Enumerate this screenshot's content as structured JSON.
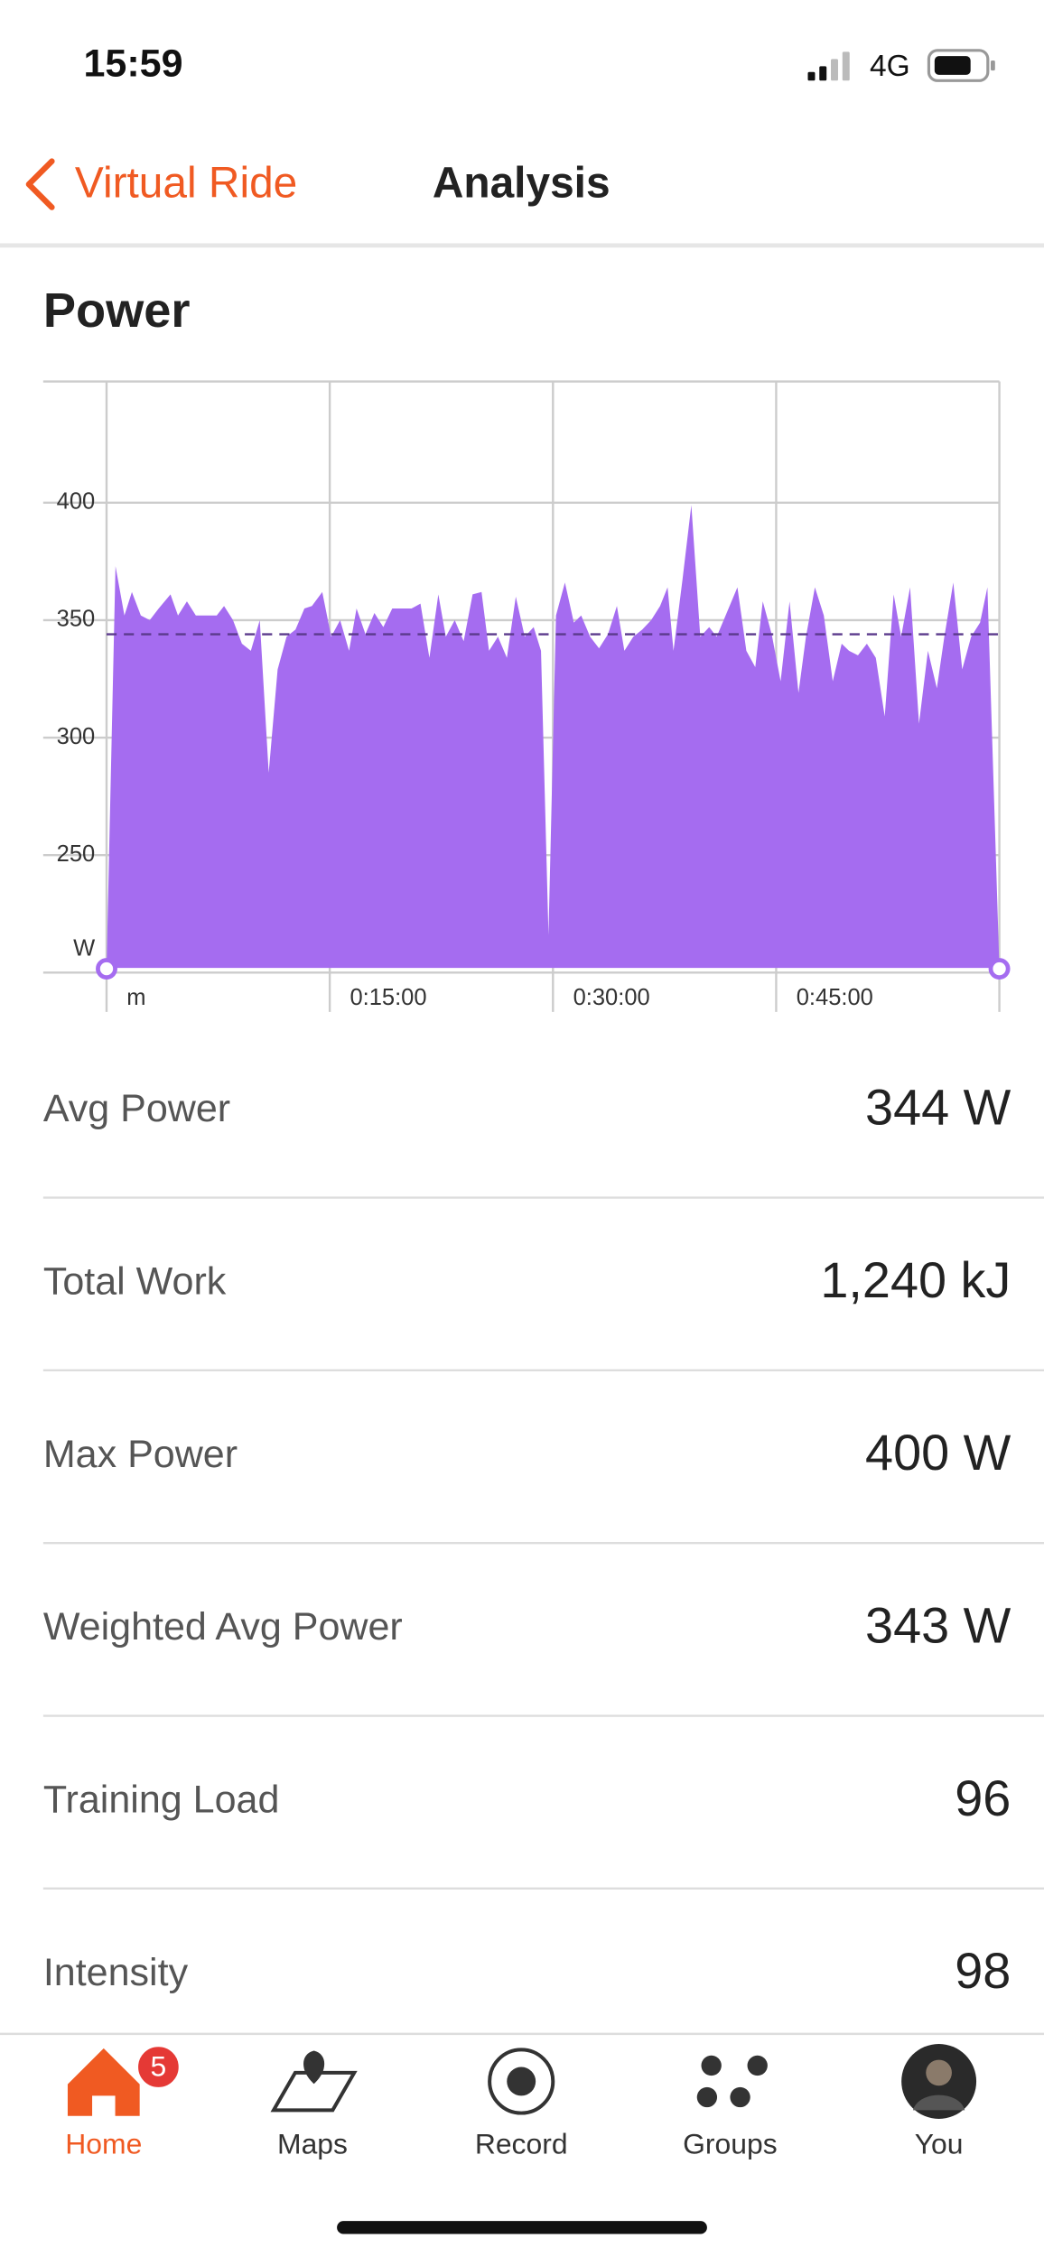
{
  "status_bar": {
    "time": "15:59",
    "network": "4G"
  },
  "nav": {
    "back": "Virtual Ride",
    "title": "Analysis"
  },
  "section_title": "Power",
  "chart_data": {
    "type": "area",
    "color": "#a56cf0",
    "average": 344,
    "grid": true,
    "xlim": [
      0,
      60
    ],
    "xticks": [
      {
        "value": 0,
        "label": "m"
      },
      {
        "value": 15,
        "label": "0:15:00"
      },
      {
        "value": 30,
        "label": "0:30:00"
      },
      {
        "value": 45,
        "label": "0:45:00"
      }
    ],
    "ylim": [
      200,
      450
    ],
    "yticks": [
      {
        "value": 200,
        "label": "W"
      },
      250,
      300,
      350,
      400
    ],
    "x": [
      0,
      0.6,
      1.2,
      1.7,
      2.3,
      2.9,
      3.5,
      4.3,
      4.8,
      5.4,
      6.0,
      6.6,
      7.4,
      7.9,
      8.5,
      9.1,
      9.7,
      10.3,
      10.9,
      11.5,
      12.1,
      12.7,
      13.3,
      13.8,
      14.5,
      15.1,
      15.7,
      16.3,
      16.8,
      17.4,
      18.0,
      18.6,
      19.2,
      19.9,
      20.5,
      21.1,
      21.7,
      22.3,
      22.8,
      23.4,
      24.0,
      24.6,
      25.2,
      25.7,
      26.3,
      26.9,
      27.5,
      28.1,
      28.7,
      29.2,
      29.7,
      30.2,
      30.8,
      31.4,
      31.9,
      32.5,
      33.1,
      33.7,
      34.3,
      34.8,
      35.4,
      36.0,
      36.6,
      37.2,
      37.7,
      38.1,
      38.7,
      39.3,
      39.9,
      40.5,
      41.0,
      41.6,
      42.4,
      43.0,
      43.6,
      44.1,
      44.7,
      45.3,
      45.9,
      46.5,
      47.0,
      47.6,
      48.2,
      48.8,
      49.4,
      49.9,
      50.5,
      51.1,
      51.7,
      52.3,
      52.9,
      53.4,
      54.0,
      54.6,
      55.2,
      55.8,
      56.3,
      56.9,
      57.5,
      58.1,
      58.7,
      59.2,
      60.0
    ],
    "values": [
      202,
      373,
      352,
      362,
      352,
      350,
      355,
      361,
      352,
      358,
      352,
      352,
      352,
      356,
      350,
      340,
      337,
      350,
      285,
      329,
      343,
      346,
      355,
      356,
      362,
      343,
      350,
      337,
      355,
      344,
      353,
      347,
      355,
      355,
      355,
      357,
      334,
      361,
      343,
      350,
      341,
      361,
      362,
      337,
      343,
      334,
      360,
      343,
      347,
      337,
      216,
      352,
      366,
      349,
      352,
      343,
      338,
      344,
      356,
      337,
      343,
      346,
      350,
      356,
      364,
      337,
      367,
      399,
      343,
      347,
      343,
      352,
      364,
      337,
      330,
      358,
      344,
      324,
      358,
      319,
      343,
      364,
      352,
      324,
      340,
      337,
      335,
      340,
      334,
      309,
      361,
      343,
      364,
      306,
      337,
      321,
      343,
      366,
      329,
      343,
      349,
      364,
      202
    ]
  },
  "stats": [
    {
      "label": "Avg Power",
      "value": "344 W"
    },
    {
      "label": "Total Work",
      "value": "1,240 kJ"
    },
    {
      "label": "Max Power",
      "value": "400 W"
    },
    {
      "label": "Weighted Avg Power",
      "value": "343 W"
    },
    {
      "label": "Training Load",
      "value": "96"
    },
    {
      "label": "Intensity",
      "value": "98"
    }
  ],
  "tab_bar": {
    "badge": "5",
    "tabs": [
      {
        "label": "Home"
      },
      {
        "label": "Maps"
      },
      {
        "label": "Record"
      },
      {
        "label": "Groups"
      },
      {
        "label": "You"
      }
    ]
  }
}
